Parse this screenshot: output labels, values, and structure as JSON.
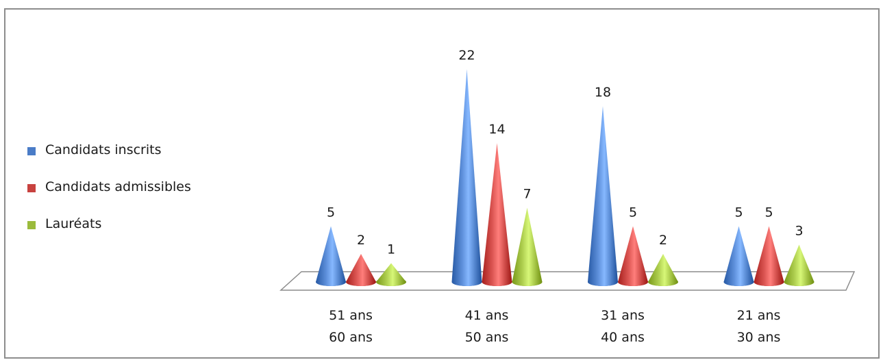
{
  "chart_data": {
    "type": "bar",
    "categories": [
      [
        "51 ans",
        "60 ans"
      ],
      [
        "41 ans",
        "50 ans"
      ],
      [
        "31 ans",
        "40 ans"
      ],
      [
        "21 ans",
        "30 ans"
      ]
    ],
    "series": [
      {
        "name": "Candidats inscrits",
        "values": [
          5,
          22,
          18,
          5
        ],
        "color": "#4a7cc7"
      },
      {
        "name": "Candidats admissibles",
        "values": [
          2,
          14,
          5,
          5
        ],
        "color": "#c8423f"
      },
      {
        "name": "Lauréats",
        "values": [
          1,
          7,
          2,
          3
        ],
        "color": "#9bbb3c"
      }
    ],
    "mark_shape": "cone",
    "ylim": [
      0,
      22
    ],
    "legend_position": "left",
    "grid": false,
    "title": "",
    "xlabel": "",
    "ylabel": ""
  }
}
